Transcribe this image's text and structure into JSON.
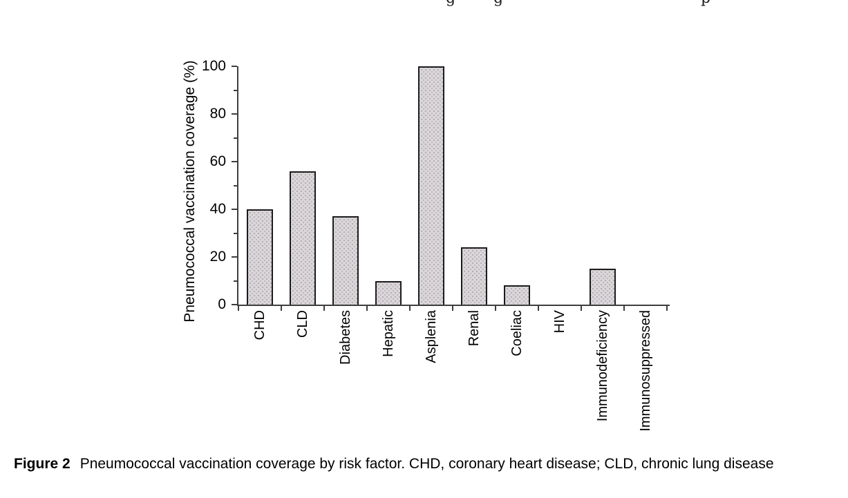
{
  "page": {
    "clipped_top_fragments": [
      {
        "char": "g",
        "x": 645
      },
      {
        "char": "g",
        "x": 714
      },
      {
        "char": "p",
        "x": 1014
      }
    ]
  },
  "chart_data": {
    "type": "bar",
    "categories": [
      "CHD",
      "CLD",
      "Diabetes",
      "Hepatic",
      "Asplenia",
      "Renal",
      "Coeliac",
      "HIV",
      "Immunodeficiency",
      "Immunosuppressed"
    ],
    "values": [
      40,
      56,
      37,
      10,
      100,
      24,
      8,
      0,
      15,
      0
    ],
    "title": "",
    "xlabel": "",
    "ylabel": "Pneumococcal vaccination coverage (%)",
    "ylim": [
      0,
      100
    ],
    "yticks": [
      0,
      20,
      40,
      60,
      80,
      100
    ],
    "minor_yticks": [
      10,
      30,
      50,
      70,
      90
    ],
    "grid": false,
    "legend": "none",
    "bar_fill_color": "#d8d8d8",
    "bar_stipple_color": "#a87a9e",
    "bar_border_color": "#1c1c1c",
    "axis_color": "#3d3d3d"
  },
  "caption": {
    "label": "Figure 2",
    "text": "Pneumococcal vaccination coverage by risk factor. CHD, coronary heart disease; CLD, chronic lung disease"
  }
}
